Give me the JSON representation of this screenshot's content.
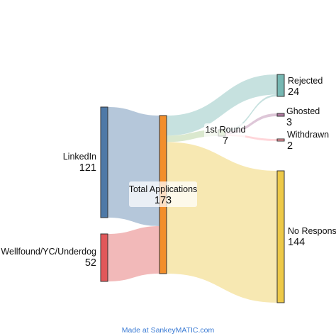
{
  "diagram": {
    "type": "sankey",
    "credit": "Made at SankeyMATIC.com",
    "credit_color": "#3b7bd4",
    "nodes": [
      {
        "id": "linkedin",
        "name": "LinkedIn",
        "value": "121",
        "color": "#4e79a7"
      },
      {
        "id": "wellfound",
        "name": "Wellfound/YC/Underdog",
        "value": "52",
        "color": "#e15759"
      },
      {
        "id": "total",
        "name": "Total Applications",
        "value": "173",
        "color": "#f28e2b"
      },
      {
        "id": "first_round",
        "name": "1st Round",
        "value": "7",
        "color": "#a8c98a"
      },
      {
        "id": "rejected",
        "name": "Rejected",
        "value": "24",
        "color": "#76b7b2"
      },
      {
        "id": "ghosted",
        "name": "Ghosted",
        "value": "3",
        "color": "#b07aa1"
      },
      {
        "id": "withdrawn",
        "name": "Withdrawn",
        "value": "2",
        "color": "#ff9da7"
      },
      {
        "id": "no_response",
        "name": "No Response",
        "value": "144",
        "color": "#edc948"
      }
    ],
    "flows": [
      {
        "from": "linkedin",
        "to": "total",
        "value": 121
      },
      {
        "from": "wellfound",
        "to": "total",
        "value": 52
      },
      {
        "from": "total",
        "to": "rejected",
        "value": 22
      },
      {
        "from": "total",
        "to": "first_round",
        "value": 7
      },
      {
        "from": "total",
        "to": "no_response",
        "value": 144
      },
      {
        "from": "first_round",
        "to": "rejected",
        "value": 2
      },
      {
        "from": "first_round",
        "to": "ghosted",
        "value": 3
      },
      {
        "from": "first_round",
        "to": "withdrawn",
        "value": 2
      }
    ]
  }
}
